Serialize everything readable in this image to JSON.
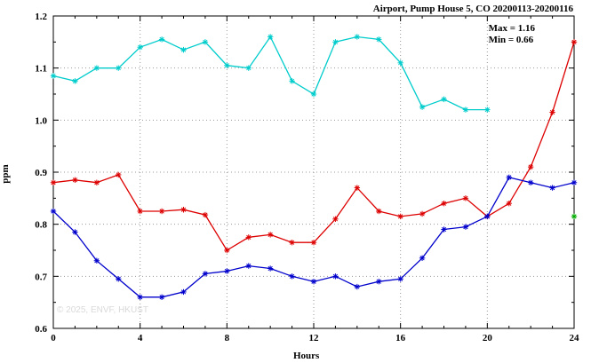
{
  "title": "Airport, Pump House 5, CO 20200113-20200116",
  "annotation": {
    "max_label": "Max = 1.16",
    "min_label": "Min = 0.66"
  },
  "watermark": "© 2025, ENVF, HKUST",
  "chart_data": {
    "type": "line",
    "title": "Airport, Pump House 5, CO 20200113-20200116",
    "xlabel": "Hours",
    "ylabel": "ppm",
    "xlim": [
      0,
      24
    ],
    "ylim": [
      0.6,
      1.2
    ],
    "xticks": [
      0,
      4,
      8,
      12,
      16,
      20,
      24
    ],
    "yticks": [
      0.6,
      0.7,
      0.8,
      0.9,
      1.0,
      1.1,
      1.2
    ],
    "minor_x_step": 1,
    "minor_y_step": 0.05,
    "grid": true,
    "legend": "none",
    "x": [
      0,
      1,
      2,
      3,
      4,
      5,
      6,
      7,
      8,
      9,
      10,
      11,
      12,
      13,
      14,
      15,
      16,
      17,
      18,
      19,
      20,
      21,
      22,
      23,
      24
    ],
    "series": [
      {
        "name": "cyan-series",
        "color": "#00cccc",
        "values": [
          1.085,
          1.075,
          1.1,
          1.1,
          1.14,
          1.155,
          1.135,
          1.15,
          1.105,
          1.1,
          1.16,
          1.075,
          1.05,
          1.15,
          1.16,
          1.155,
          1.11,
          1.025,
          1.04,
          1.02,
          1.02,
          null,
          null,
          null,
          null
        ]
      },
      {
        "name": "red-series",
        "color": "#dd0000",
        "values": [
          0.88,
          0.885,
          0.88,
          0.895,
          0.825,
          0.825,
          0.828,
          0.818,
          0.75,
          0.775,
          0.78,
          0.765,
          0.765,
          0.81,
          0.87,
          0.825,
          0.815,
          0.82,
          0.84,
          0.85,
          0.815,
          0.84,
          0.91,
          1.015,
          1.15
        ]
      },
      {
        "name": "blue-series",
        "color": "#0000cc",
        "values": [
          0.825,
          0.785,
          0.73,
          0.695,
          0.66,
          0.66,
          0.67,
          0.705,
          0.71,
          0.72,
          0.715,
          0.7,
          0.69,
          0.7,
          0.68,
          0.69,
          0.695,
          0.735,
          0.79,
          0.795,
          0.815,
          0.89,
          0.88,
          0.87,
          0.88
        ]
      },
      {
        "name": "green-point",
        "color": "#00aa00",
        "values": [
          null,
          null,
          null,
          null,
          null,
          null,
          null,
          null,
          null,
          null,
          null,
          null,
          null,
          null,
          null,
          null,
          null,
          null,
          null,
          null,
          null,
          null,
          null,
          null,
          0.815
        ]
      }
    ],
    "annotations": [
      "Max = 1.16",
      "Min = 0.66"
    ]
  }
}
